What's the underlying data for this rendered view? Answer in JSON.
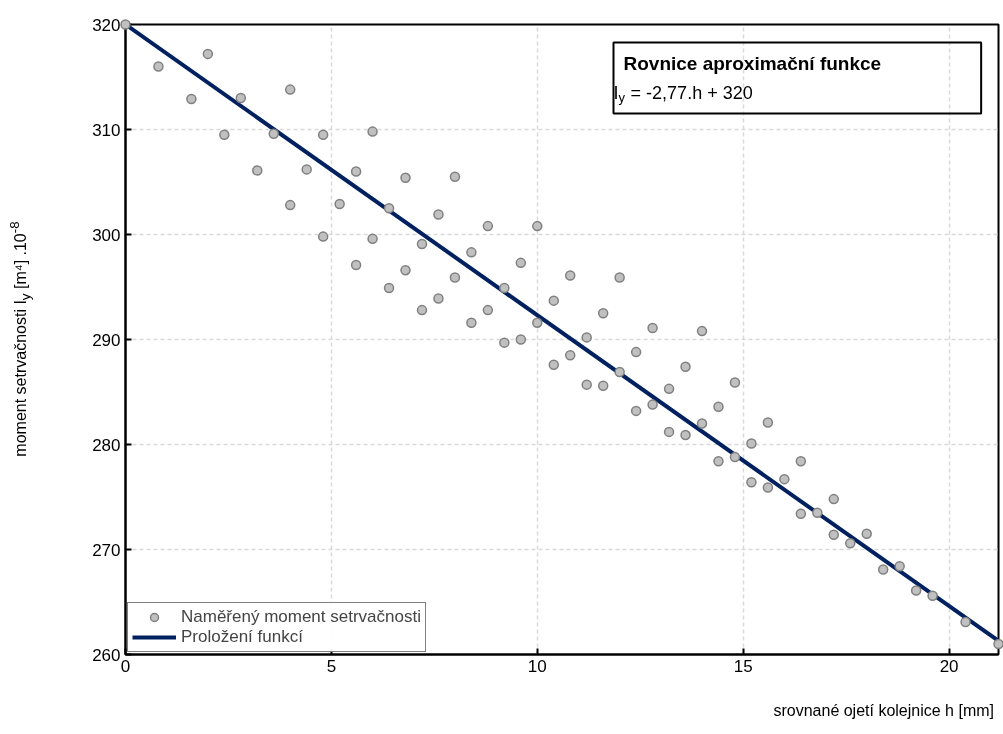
{
  "chart_data": {
    "type": "scatter",
    "xlabel": "srovnané ojetí kolejnice h [mm]",
    "ylabel": "moment setrvačnosti I$_{y}$ [m⁴] .10$^{-8}$",
    "annotations": [
      "Rovnice aproximační funkce",
      "I$_{y}$ = -2,77.h + 320"
    ],
    "xlim": [
      0,
      21.2
    ],
    "ylim": [
      260,
      320
    ],
    "xticks": [
      0,
      5,
      10,
      15,
      20
    ],
    "yticks": [
      260,
      270,
      280,
      290,
      300,
      310,
      320
    ],
    "grid": true,
    "legend": "bottom left",
    "series": [
      {
        "name": "Naměřený moment setrvačnosti",
        "marker": "circle",
        "color": "#c0c0c0",
        "x": [
          0,
          0.8,
          1.6,
          2.0,
          2.4,
          2.8,
          3.2,
          3.6,
          4.0,
          4.0,
          4.4,
          4.8,
          4.8,
          5.2,
          5.6,
          5.6,
          6.0,
          6.0,
          6.4,
          6.4,
          6.8,
          6.8,
          7.2,
          7.2,
          7.6,
          7.6,
          8.0,
          8.0,
          8.4,
          8.4,
          8.8,
          8.8,
          9.2,
          9.2,
          9.6,
          9.6,
          10.0,
          10.0,
          10.4,
          10.4,
          10.8,
          10.8,
          11.2,
          11.2,
          11.6,
          11.6,
          12.0,
          12.0,
          12.4,
          12.4,
          12.8,
          12.8,
          13.2,
          13.2,
          13.6,
          13.6,
          14.0,
          14.0,
          14.4,
          14.4,
          14.8,
          14.8,
          15.2,
          15.2,
          15.6,
          15.6,
          16.0,
          16.4,
          16.4,
          16.8,
          17.2,
          17.2,
          17.6,
          18.0,
          18.4,
          18.8,
          19.2,
          19.6,
          20.4,
          21.2
        ],
        "values": [
          320,
          316.0,
          312.9,
          317.2,
          309.5,
          313.0,
          306.1,
          309.6,
          313.8,
          302.8,
          306.2,
          309.5,
          299.8,
          302.9,
          306.0,
          297.1,
          309.8,
          299.6,
          302.5,
          294.9,
          305.4,
          296.6,
          299.1,
          292.8,
          301.9,
          293.9,
          305.5,
          295.9,
          298.3,
          291.6,
          300.8,
          292.8,
          294.9,
          289.7,
          297.3,
          290.0,
          300.8,
          291.6,
          293.7,
          287.6,
          296.1,
          288.5,
          290.2,
          285.7,
          292.5,
          285.6,
          295.9,
          286.9,
          288.8,
          283.2,
          291.1,
          283.8,
          285.3,
          281.2,
          287.4,
          280.9,
          290.8,
          282.0,
          283.6,
          278.4,
          285.9,
          278.8,
          280.1,
          276.4,
          282.1,
          275.9,
          276.7,
          278.4,
          273.4,
          273.5,
          274.8,
          271.4,
          270.6,
          271.5,
          268.1,
          268.4,
          266.1,
          265.6,
          263.1,
          261.0
        ]
      },
      {
        "name": "Proložení funkcí",
        "type": "line",
        "color": "#002060",
        "x": [
          0,
          21.2
        ],
        "values": [
          320,
          261.3
        ]
      }
    ]
  }
}
